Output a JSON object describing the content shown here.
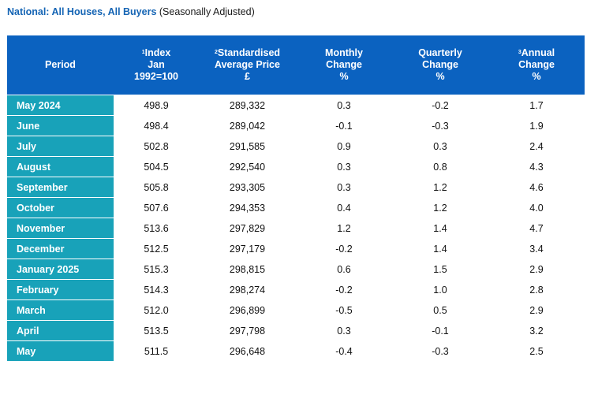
{
  "title": {
    "bold": "National: All Houses, All Buyers",
    "normal": " (Seasonally Adjusted)"
  },
  "table": {
    "headers": [
      {
        "sup": "",
        "lines": [
          "Period"
        ]
      },
      {
        "sup": "1",
        "lines": [
          "Index",
          "Jan",
          "1992=100"
        ]
      },
      {
        "sup": "2",
        "lines": [
          "Standardised",
          "Average Price",
          "£"
        ]
      },
      {
        "sup": "",
        "lines": [
          "Monthly",
          "Change",
          "%"
        ]
      },
      {
        "sup": "",
        "lines": [
          "Quarterly",
          "Change",
          "%"
        ]
      },
      {
        "sup": "3",
        "lines": [
          "Annual",
          "Change",
          "%"
        ]
      }
    ],
    "rows": [
      [
        "May 2024",
        "498.9",
        "289,332",
        "0.3",
        "-0.2",
        "1.7"
      ],
      [
        "June",
        "498.4",
        "289,042",
        "-0.1",
        "-0.3",
        "1.9"
      ],
      [
        "July",
        "502.8",
        "291,585",
        "0.9",
        "0.3",
        "2.4"
      ],
      [
        "August",
        "504.5",
        "292,540",
        "0.3",
        "0.8",
        "4.3"
      ],
      [
        "September",
        "505.8",
        "293,305",
        "0.3",
        "1.2",
        "4.6"
      ],
      [
        "October",
        "507.6",
        "294,353",
        "0.4",
        "1.2",
        "4.0"
      ],
      [
        "November",
        "513.6",
        "297,829",
        "1.2",
        "1.4",
        "4.7"
      ],
      [
        "December",
        "512.5",
        "297,179",
        "-0.2",
        "1.4",
        "3.4"
      ],
      [
        "January 2025",
        "515.3",
        "298,815",
        "0.6",
        "1.5",
        "2.9"
      ],
      [
        "February",
        "514.3",
        "298,274",
        "-0.2",
        "1.0",
        "2.8"
      ],
      [
        "March",
        "512.0",
        "296,899",
        "-0.5",
        "0.5",
        "2.9"
      ],
      [
        "April",
        "513.5",
        "297,798",
        "0.3",
        "-0.1",
        "3.2"
      ],
      [
        "May",
        "511.5",
        "296,648",
        "-0.4",
        "-0.3",
        "2.5"
      ]
    ]
  },
  "colors": {
    "header_bg": "#0b62c0",
    "period_bg": "#18a2b9",
    "title_accent": "#1464b4"
  }
}
